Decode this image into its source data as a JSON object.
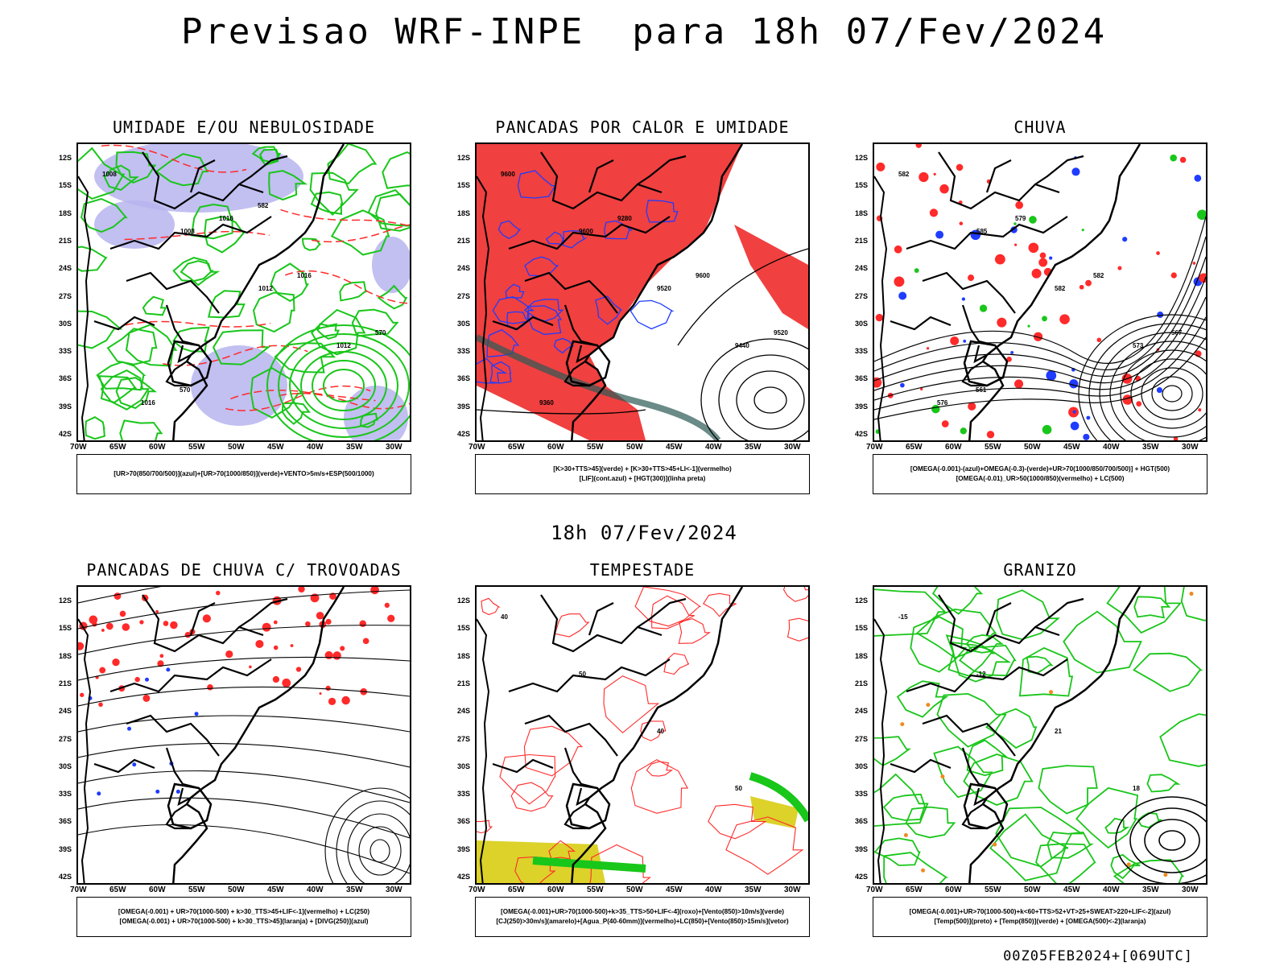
{
  "title": "Previsao WRF-INPE  para 18h 07/Fev/2024",
  "subtitle": "18h 07/Fev/2024",
  "footer": "00Z05FEB2024+[069UTC]",
  "lat_labels": [
    "12S",
    "15S",
    "18S",
    "21S",
    "24S",
    "27S",
    "30S",
    "33S",
    "36S",
    "39S",
    "42S"
  ],
  "lon_labels": [
    "70W",
    "65W",
    "60W",
    "55W",
    "50W",
    "45W",
    "40W",
    "35W",
    "30W"
  ],
  "colors": {
    "blue": "#1f3cff",
    "green": "#19c61a",
    "red": "#ff2a2a",
    "black": "#000000",
    "lavender": "#b7b4ee",
    "fill_red": "#f04040",
    "yellow": "#dcd22a",
    "orange": "#f08a20",
    "teal": "#2b5a55"
  },
  "panels": [
    {
      "title": "UMIDADE E/OU NEBULOSIDADE",
      "legend": [
        "[UR>70(850/700/500)](azul)+[UR>70(1000/850)](verde)+VENTO>5m/s+ESP(500/1000)"
      ],
      "contour_labels": [
        "1008",
        "1008",
        "1012",
        "1012",
        "1016",
        "1016",
        "1016",
        "570",
        "570",
        "582"
      ]
    },
    {
      "title": "PANCADAS POR CALOR E UMIDADE",
      "legend": [
        "[K>30+TTS>45](verde) + [K>30+TTS>45+LI<-1](vermelho)",
        "[LIF](cont.azul) + [HGT(300)](linha preta)"
      ],
      "contour_labels": [
        "9600",
        "9600",
        "9520",
        "9440",
        "9360",
        "9280",
        "9600",
        "9520"
      ]
    },
    {
      "title": "CHUVA",
      "legend": [
        "[OMEGA(-0.001)-(azul)+OMEGA(-0.3)-(verde)+UR>70(1000/850/700/500)] + HGT(500)",
        "[OMEGA(-0.01)_UR>50(1000/850)(vermelho) + LC(500)"
      ],
      "contour_labels": [
        "582",
        "585",
        "582",
        "573",
        "576",
        "579",
        "582",
        "567",
        "561"
      ]
    },
    {
      "title": "PANCADAS DE CHUVA C/ TROVOADAS",
      "legend": [
        "[OMEGA(-0.001) + UR>70(1000-500) + k>30_TTS>45+LIF<-1](vermelho) + LC(250)",
        "[OMEGA(-0.001) + UR>70(1000-500) + k>30_TTS>45](laranja) + [DIVG(250)](azul)"
      ],
      "contour_labels": []
    },
    {
      "title": "TEMPESTADE",
      "legend": [
        "[OMEGA(-0.001)+UR>70(1000-500)+k>35_TTS>50+LIF<-4](roxo)+[Vento(850)>10m/s](verde)",
        "[CJ(250)>30m/s](amarelo)+[Agua_P(40-60mm)](vermelho)+LC(850)+[Vento(850)>15m/s](vetor)"
      ],
      "contour_labels": [
        "40",
        "50",
        "40",
        "50"
      ]
    },
    {
      "title": "GRANIZO",
      "legend": [
        "[OMEGA(-0.001)+UR>70(1000-500)+k<60+TTS>52+VT>25+SWEAT>220+LIF<-2](azul)",
        "[Temp(500)](preto) + [Temp(850)](verde) + [OMEGA(500)<-2](laranja)"
      ],
      "contour_labels": [
        "-15",
        "-12",
        "21",
        "18"
      ]
    }
  ]
}
